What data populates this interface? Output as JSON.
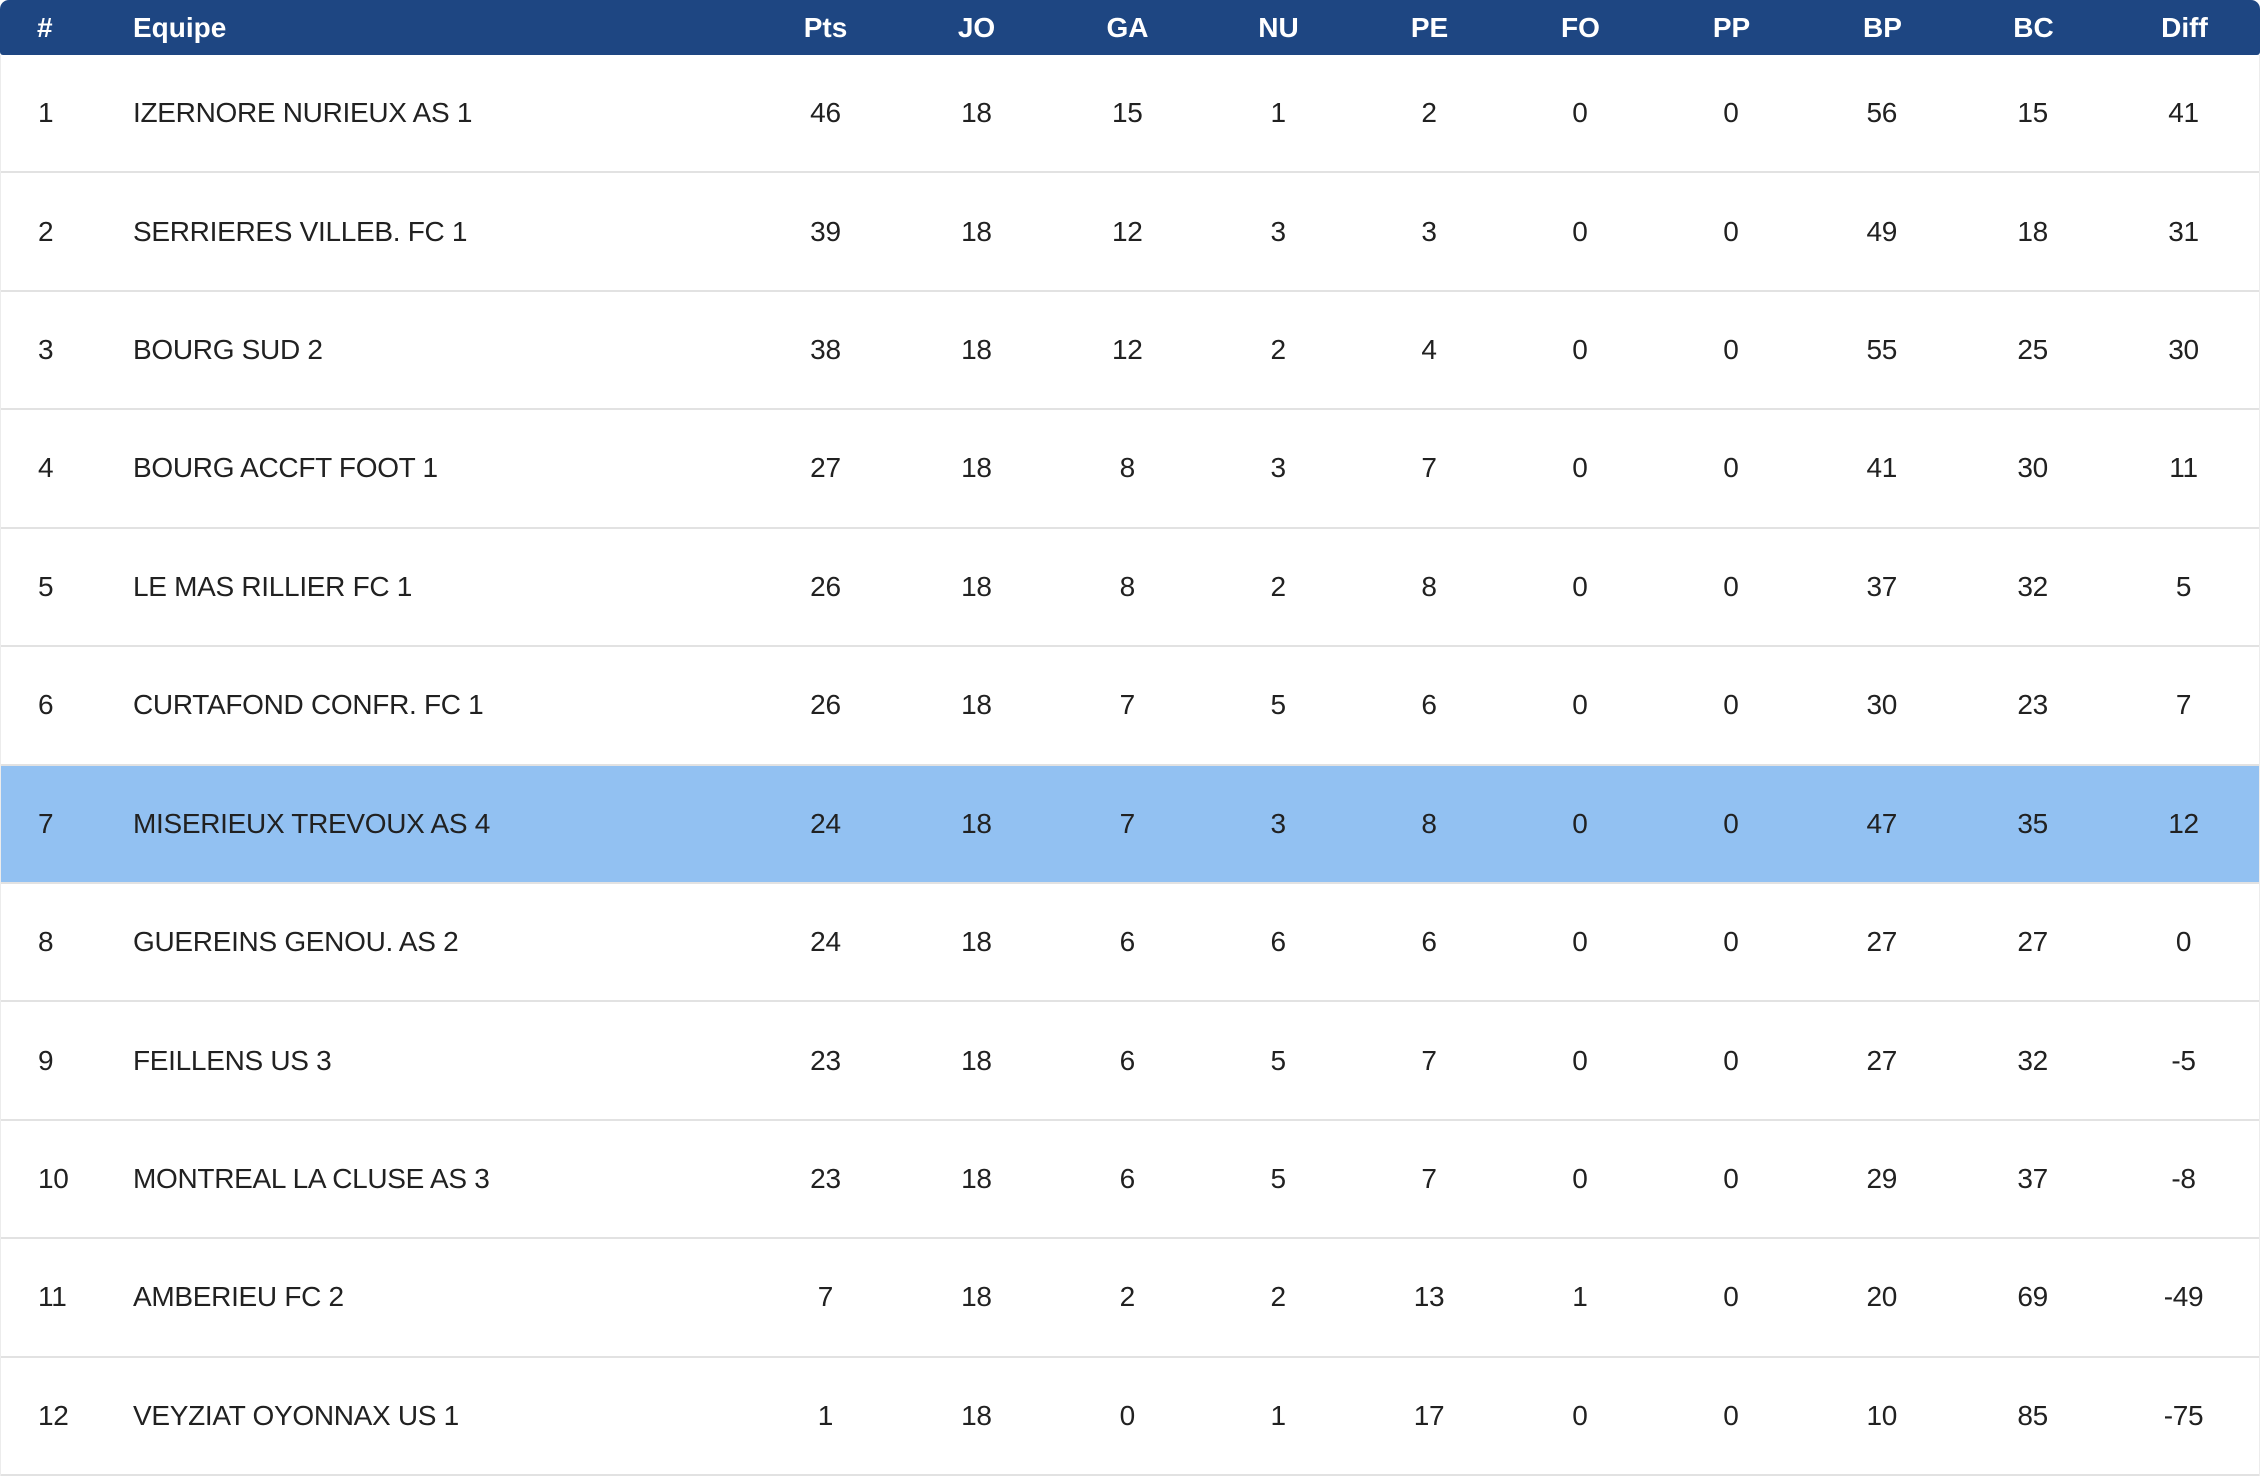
{
  "table": {
    "colors": {
      "header_bg": "#1e4682",
      "header_text": "#ffffff",
      "highlight_bg": "#92c1f2",
      "row_text": "#212121",
      "separator": "#e2e2e2"
    },
    "columns": [
      {
        "key": "rank",
        "label": "#"
      },
      {
        "key": "team",
        "label": "Equipe"
      },
      {
        "key": "pts",
        "label": "Pts"
      },
      {
        "key": "jo",
        "label": "JO"
      },
      {
        "key": "ga",
        "label": "GA"
      },
      {
        "key": "nu",
        "label": "NU"
      },
      {
        "key": "pe",
        "label": "PE"
      },
      {
        "key": "fo",
        "label": "FO"
      },
      {
        "key": "pp",
        "label": "PP"
      },
      {
        "key": "bp",
        "label": "BP"
      },
      {
        "key": "bc",
        "label": "BC"
      },
      {
        "key": "diff",
        "label": "Diff"
      }
    ],
    "highlighted_rank": "7",
    "rows": [
      {
        "rank": "1",
        "team": "IZERNORE NURIEUX AS 1",
        "pts": "46",
        "jo": "18",
        "ga": "15",
        "nu": "1",
        "pe": "2",
        "fo": "0",
        "pp": "0",
        "bp": "56",
        "bc": "15",
        "diff": "41",
        "highlighted": false
      },
      {
        "rank": "2",
        "team": "SERRIERES VILLEB. FC 1",
        "pts": "39",
        "jo": "18",
        "ga": "12",
        "nu": "3",
        "pe": "3",
        "fo": "0",
        "pp": "0",
        "bp": "49",
        "bc": "18",
        "diff": "31",
        "highlighted": false
      },
      {
        "rank": "3",
        "team": "BOURG SUD 2",
        "pts": "38",
        "jo": "18",
        "ga": "12",
        "nu": "2",
        "pe": "4",
        "fo": "0",
        "pp": "0",
        "bp": "55",
        "bc": "25",
        "diff": "30",
        "highlighted": false
      },
      {
        "rank": "4",
        "team": "BOURG ACCFT FOOT 1",
        "pts": "27",
        "jo": "18",
        "ga": "8",
        "nu": "3",
        "pe": "7",
        "fo": "0",
        "pp": "0",
        "bp": "41",
        "bc": "30",
        "diff": "11",
        "highlighted": false
      },
      {
        "rank": "5",
        "team": "LE MAS RILLIER FC 1",
        "pts": "26",
        "jo": "18",
        "ga": "8",
        "nu": "2",
        "pe": "8",
        "fo": "0",
        "pp": "0",
        "bp": "37",
        "bc": "32",
        "diff": "5",
        "highlighted": false
      },
      {
        "rank": "6",
        "team": "CURTAFOND CONFR. FC 1",
        "pts": "26",
        "jo": "18",
        "ga": "7",
        "nu": "5",
        "pe": "6",
        "fo": "0",
        "pp": "0",
        "bp": "30",
        "bc": "23",
        "diff": "7",
        "highlighted": false
      },
      {
        "rank": "7",
        "team": "MISERIEUX TREVOUX AS 4",
        "pts": "24",
        "jo": "18",
        "ga": "7",
        "nu": "3",
        "pe": "8",
        "fo": "0",
        "pp": "0",
        "bp": "47",
        "bc": "35",
        "diff": "12",
        "highlighted": true
      },
      {
        "rank": "8",
        "team": "GUEREINS GENOU. AS 2",
        "pts": "24",
        "jo": "18",
        "ga": "6",
        "nu": "6",
        "pe": "6",
        "fo": "0",
        "pp": "0",
        "bp": "27",
        "bc": "27",
        "diff": "0",
        "highlighted": false
      },
      {
        "rank": "9",
        "team": "FEILLENS US 3",
        "pts": "23",
        "jo": "18",
        "ga": "6",
        "nu": "5",
        "pe": "7",
        "fo": "0",
        "pp": "0",
        "bp": "27",
        "bc": "32",
        "diff": "-5",
        "highlighted": false
      },
      {
        "rank": "10",
        "team": "MONTREAL LA CLUSE AS 3",
        "pts": "23",
        "jo": "18",
        "ga": "6",
        "nu": "5",
        "pe": "7",
        "fo": "0",
        "pp": "0",
        "bp": "29",
        "bc": "37",
        "diff": "-8",
        "highlighted": false
      },
      {
        "rank": "11",
        "team": "AMBERIEU FC 2",
        "pts": "7",
        "jo": "18",
        "ga": "2",
        "nu": "2",
        "pe": "13",
        "fo": "1",
        "pp": "0",
        "bp": "20",
        "bc": "69",
        "diff": "-49",
        "highlighted": false
      },
      {
        "rank": "12",
        "team": "VEYZIAT OYONNAX US 1",
        "pts": "1",
        "jo": "18",
        "ga": "0",
        "nu": "1",
        "pe": "17",
        "fo": "0",
        "pp": "0",
        "bp": "10",
        "bc": "85",
        "diff": "-75",
        "highlighted": false
      }
    ]
  }
}
